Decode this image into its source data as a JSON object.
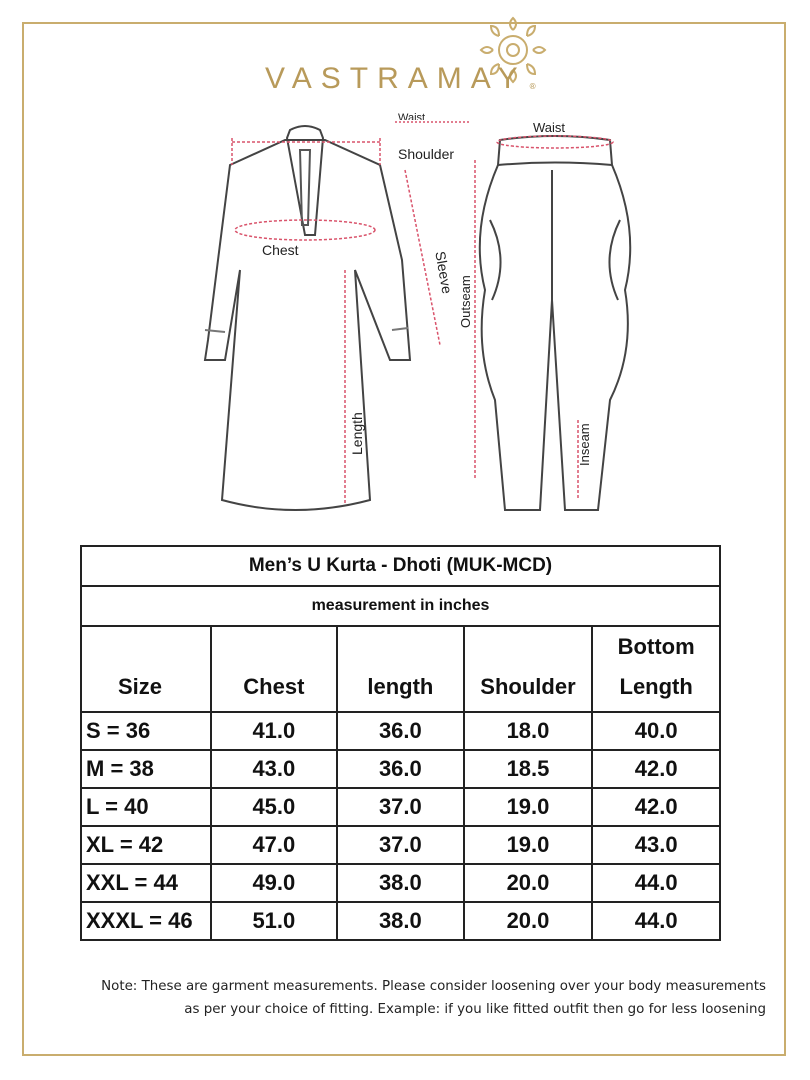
{
  "brand": {
    "name": "VASTRAMAY",
    "registered": "®",
    "color": "#b89a5a"
  },
  "diagram": {
    "kurta_labels": {
      "waist": "Waist",
      "shoulder": "Shoulder",
      "chest": "Chest",
      "sleeve": "Sleeve",
      "length": "Length"
    },
    "dhoti_labels": {
      "waist": "Waist",
      "outseam": "Outseam",
      "inseam": "Inseam"
    },
    "measure_line_color": "#d9536b"
  },
  "table": {
    "title": "Men’s U Kurta - Dhoti (MUK-MCD)",
    "subtitle": "measurement in inches",
    "headers": [
      "Size",
      "Chest",
      "length",
      "Shoulder",
      "Bottom Length"
    ],
    "rows": [
      [
        "S = 36",
        "41.0",
        "36.0",
        "18.0",
        "40.0"
      ],
      [
        "M = 38",
        "43.0",
        "36.0",
        "18.5",
        "42.0"
      ],
      [
        "L = 40",
        "45.0",
        "37.0",
        "19.0",
        "42.0"
      ],
      [
        "XL = 42",
        "47.0",
        "37.0",
        "19.0",
        "43.0"
      ],
      [
        "XXL = 44",
        "49.0",
        "38.0",
        "20.0",
        "44.0"
      ],
      [
        "XXXL = 46",
        "51.0",
        "38.0",
        "20.0",
        "44.0"
      ]
    ]
  },
  "note": {
    "line1": "Note: These are garment measurements. Please consider loosening over your body measurements",
    "line2": "as per your choice of fitting. Example: if you like fitted outfit then go for less loosening"
  }
}
